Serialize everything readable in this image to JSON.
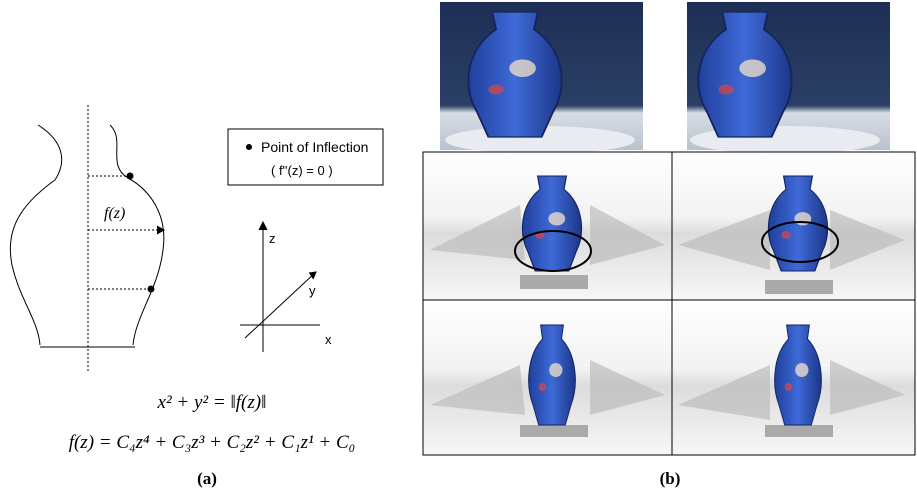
{
  "panel_a": {
    "legend": {
      "label": "Point of Inflection",
      "condition": "( f''(z) = 0 )"
    },
    "curve_label": "f(z)",
    "axes": {
      "z": "z",
      "y": "y",
      "x": "x"
    },
    "equation_1": "x² + y² = ‖f(z)‖",
    "equation_2": "f(z) = C₄z⁴ + C₃z³ + C₂z² + C₁z¹ + C₀",
    "caption": "(a)"
  },
  "panel_b": {
    "caption": "(b)"
  }
}
